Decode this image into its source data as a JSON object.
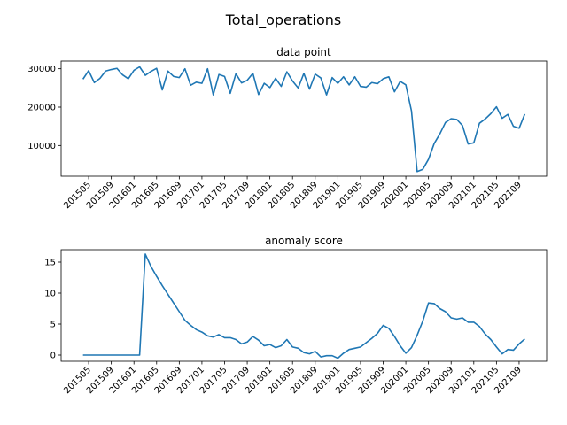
{
  "figure": {
    "suptitle": "Total_operations"
  },
  "colors": {
    "line": "#1f77b4",
    "axis": "#000000",
    "background": "#ffffff"
  },
  "chart_data": [
    {
      "type": "line",
      "title": "data point",
      "xlabel": "",
      "ylabel": "",
      "ylim": [
        2000,
        32000
      ],
      "yticks": [
        10000,
        20000,
        30000
      ],
      "grid": false,
      "x_tick_labels": [
        "201505",
        "201509",
        "201601",
        "201605",
        "201609",
        "201701",
        "201705",
        "201709",
        "201801",
        "201805",
        "201809",
        "201901",
        "201905",
        "201909",
        "202001",
        "202005",
        "202009",
        "202101",
        "202105",
        "202109"
      ],
      "x_start": "2015-04",
      "values": [
        27300,
        29500,
        26400,
        27500,
        29400,
        29800,
        30100,
        28400,
        27400,
        29600,
        30500,
        28300,
        29300,
        30100,
        24500,
        29400,
        28000,
        27700,
        30000,
        25700,
        26500,
        26200,
        30000,
        23200,
        28500,
        28000,
        23600,
        28700,
        26300,
        27000,
        28800,
        23300,
        26200,
        25100,
        27500,
        25400,
        29200,
        26800,
        25000,
        28800,
        24700,
        28600,
        27600,
        23200,
        27700,
        26200,
        27900,
        25800,
        27900,
        25400,
        25200,
        26400,
        26100,
        27400,
        27900,
        24000,
        26700,
        25800,
        19000,
        3200,
        3800,
        6400,
        10500,
        13000,
        16000,
        17000,
        16800,
        15200,
        10400,
        10700,
        15800,
        16900,
        18300,
        20100,
        17100,
        18100,
        15000,
        14500,
        18200
      ]
    },
    {
      "type": "line",
      "title": "anomaly score",
      "xlabel": "",
      "ylabel": "",
      "ylim": [
        -1,
        17
      ],
      "yticks": [
        0,
        5,
        10,
        15
      ],
      "grid": false,
      "x_tick_labels": [
        "201505",
        "201509",
        "201601",
        "201605",
        "201609",
        "201701",
        "201705",
        "201709",
        "201801",
        "201805",
        "201809",
        "201901",
        "201905",
        "201909",
        "202001",
        "202005",
        "202009",
        "202101",
        "202105",
        "202109"
      ],
      "x_start": "2015-04",
      "values": [
        0,
        0,
        0,
        0,
        0,
        0,
        0,
        0,
        0,
        0,
        0,
        16.3,
        14.3,
        12.7,
        11.2,
        9.8,
        8.4,
        7.0,
        5.6,
        4.8,
        4.1,
        3.7,
        3.1,
        2.9,
        3.3,
        2.8,
        2.8,
        2.5,
        1.8,
        2.1,
        3.0,
        2.4,
        1.5,
        1.7,
        1.2,
        1.5,
        2.5,
        1.3,
        1.1,
        0.4,
        0.2,
        0.6,
        -0.3,
        -0.1,
        -0.1,
        -0.5,
        0.3,
        0.9,
        1.1,
        1.3,
        2.0,
        2.7,
        3.5,
        4.8,
        4.3,
        3.0,
        1.5,
        0.3,
        1.2,
        3.2,
        5.5,
        8.4,
        8.3,
        7.5,
        7.0,
        6.0,
        5.8,
        6.0,
        5.3,
        5.3,
        4.6,
        3.4,
        2.5,
        1.3,
        0.2,
        0.9,
        0.8,
        1.8,
        2.6
      ]
    }
  ]
}
